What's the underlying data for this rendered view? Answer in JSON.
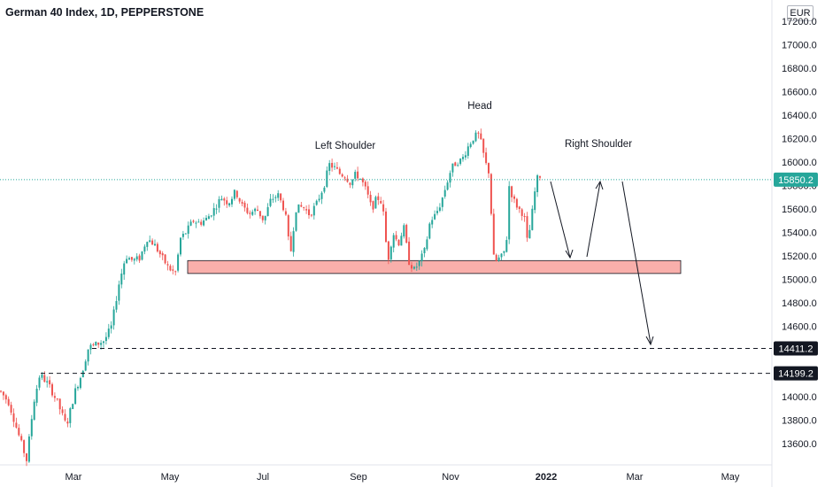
{
  "chart_data": {
    "type": "candlestick",
    "title": "German 40 Index, 1D, PEPPERSTONE",
    "currency": "EUR",
    "y_ticks": [
      "17200.0",
      "17000.0",
      "16800.0",
      "16600.0",
      "16400.0",
      "16200.0",
      "16000.0",
      "15800.0",
      "15600.0",
      "15400.0",
      "15200.0",
      "15000.0",
      "14800.0",
      "14600.0",
      "14400.0",
      "14200.0",
      "14000.0",
      "13800.0",
      "13600.0"
    ],
    "ylim": [
      13400,
      17300
    ],
    "x_labels": [
      "Mar",
      "May",
      "Jul",
      "Sep",
      "Nov",
      "2022",
      "Mar",
      "May"
    ],
    "last_price": {
      "value": 15850.2,
      "label": "15850.2",
      "color": "#26a69a"
    },
    "horizontal_levels": [
      {
        "value": 14411.2,
        "label": "14411.2"
      },
      {
        "value": 14199.2,
        "label": "14199.2"
      }
    ],
    "support_zone": {
      "low": 15050,
      "high": 15160,
      "color": "#f8a19c"
    },
    "annotations": [
      "Left Shoulder",
      "Head",
      "Right Shoulder"
    ],
    "price_path": [
      [
        0,
        14050
      ],
      [
        10,
        13950
      ],
      [
        20,
        13700
      ],
      [
        30,
        13460
      ],
      [
        38,
        13950
      ],
      [
        45,
        14190
      ],
      [
        55,
        14100
      ],
      [
        65,
        13950
      ],
      [
        75,
        13750
      ],
      [
        85,
        14050
      ],
      [
        92,
        14190
      ],
      [
        100,
        14420
      ],
      [
        110,
        14450
      ],
      [
        118,
        14480
      ],
      [
        126,
        14600
      ],
      [
        134,
        14950
      ],
      [
        142,
        15200
      ],
      [
        150,
        15160
      ],
      [
        158,
        15180
      ],
      [
        166,
        15350
      ],
      [
        174,
        15300
      ],
      [
        182,
        15200
      ],
      [
        190,
        15100
      ],
      [
        198,
        15050
      ],
      [
        204,
        15350
      ],
      [
        210,
        15400
      ],
      [
        218,
        15500
      ],
      [
        226,
        15480
      ],
      [
        234,
        15520
      ],
      [
        242,
        15600
      ],
      [
        250,
        15700
      ],
      [
        258,
        15650
      ],
      [
        266,
        15750
      ],
      [
        274,
        15620
      ],
      [
        282,
        15560
      ],
      [
        290,
        15600
      ],
      [
        298,
        15500
      ],
      [
        306,
        15680
      ],
      [
        314,
        15720
      ],
      [
        322,
        15580
      ],
      [
        328,
        15200
      ],
      [
        334,
        15600
      ],
      [
        342,
        15620
      ],
      [
        350,
        15550
      ],
      [
        358,
        15650
      ],
      [
        366,
        15800
      ],
      [
        372,
        15980
      ],
      [
        378,
        15950
      ],
      [
        384,
        15900
      ],
      [
        390,
        15880
      ],
      [
        396,
        15820
      ],
      [
        402,
        15900
      ],
      [
        408,
        15850
      ],
      [
        414,
        15750
      ],
      [
        420,
        15600
      ],
      [
        426,
        15700
      ],
      [
        432,
        15650
      ],
      [
        438,
        15150
      ],
      [
        444,
        15400
      ],
      [
        450,
        15300
      ],
      [
        456,
        15450
      ],
      [
        462,
        15150
      ],
      [
        468,
        15080
      ],
      [
        474,
        15150
      ],
      [
        480,
        15250
      ],
      [
        486,
        15500
      ],
      [
        492,
        15550
      ],
      [
        498,
        15650
      ],
      [
        504,
        15800
      ],
      [
        510,
        15950
      ],
      [
        516,
        16000
      ],
      [
        522,
        16020
      ],
      [
        528,
        16120
      ],
      [
        534,
        16200
      ],
      [
        540,
        16240
      ],
      [
        544,
        16150
      ],
      [
        548,
        16000
      ],
      [
        553,
        15900
      ],
      [
        557,
        15200
      ],
      [
        560,
        15150
      ],
      [
        564,
        15180
      ],
      [
        568,
        15200
      ],
      [
        572,
        15300
      ],
      [
        575,
        15800
      ],
      [
        580,
        15680
      ],
      [
        586,
        15600
      ],
      [
        592,
        15550
      ],
      [
        596,
        15300
      ],
      [
        600,
        15500
      ],
      [
        606,
        15850
      ],
      [
        612,
        15900
      ]
    ]
  }
}
